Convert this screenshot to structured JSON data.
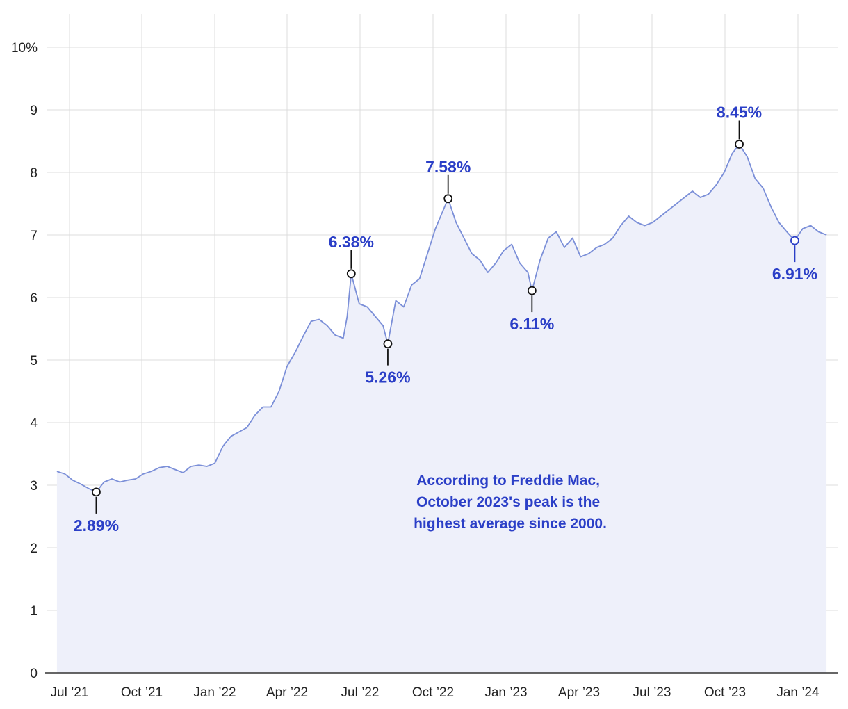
{
  "colors": {
    "line": "#7b8fd8",
    "area": "#eef0fa",
    "label": "#2b3fc7",
    "marker_last": "#2b3fc7"
  },
  "chart_data": {
    "type": "area",
    "title": "",
    "xlabel": "",
    "ylabel": "",
    "ylim": [
      0,
      10
    ],
    "xlim": [
      "2021-06-15",
      "2024-02-10"
    ],
    "y_ticks": [
      {
        "value": 0,
        "label": "0"
      },
      {
        "value": 1,
        "label": "1"
      },
      {
        "value": 2,
        "label": "2"
      },
      {
        "value": 3,
        "label": "3"
      },
      {
        "value": 4,
        "label": "4"
      },
      {
        "value": 5,
        "label": "5"
      },
      {
        "value": 6,
        "label": "6"
      },
      {
        "value": 7,
        "label": "7"
      },
      {
        "value": 8,
        "label": "8"
      },
      {
        "value": 9,
        "label": "9"
      },
      {
        "value": 10,
        "label": "10%"
      }
    ],
    "x_ticks": [
      {
        "date": "2021-07-01",
        "label": "Jul ’21"
      },
      {
        "date": "2021-10-01",
        "label": "Oct ’21"
      },
      {
        "date": "2022-01-01",
        "label": "Jan ’22"
      },
      {
        "date": "2022-04-01",
        "label": "Apr ’22"
      },
      {
        "date": "2022-07-01",
        "label": "Jul ’22"
      },
      {
        "date": "2022-10-01",
        "label": "Oct ’22"
      },
      {
        "date": "2023-01-01",
        "label": "Jan ’23"
      },
      {
        "date": "2023-04-01",
        "label": "Apr ’23"
      },
      {
        "date": "2023-07-01",
        "label": "Jul ’23"
      },
      {
        "date": "2023-10-01",
        "label": "Oct ’23"
      },
      {
        "date": "2024-01-01",
        "label": "Jan ’24"
      }
    ],
    "grid": true,
    "series": [
      {
        "x": [
          "2021-06-15",
          "2021-06-25",
          "2021-07-05",
          "2021-07-15",
          "2021-07-25",
          "2021-08-04",
          "2021-08-14",
          "2021-08-24",
          "2021-09-03",
          "2021-09-13",
          "2021-09-23",
          "2021-10-03",
          "2021-10-13",
          "2021-10-23",
          "2021-11-02",
          "2021-11-12",
          "2021-11-22",
          "2021-12-02",
          "2021-12-12",
          "2021-12-22",
          "2022-01-01",
          "2022-01-11",
          "2022-01-21",
          "2022-01-31",
          "2022-02-10",
          "2022-02-20",
          "2022-03-02",
          "2022-03-12",
          "2022-03-22",
          "2022-04-01",
          "2022-04-11",
          "2022-04-21",
          "2022-05-01",
          "2022-05-11",
          "2022-05-21",
          "2022-05-31",
          "2022-06-10",
          "2022-06-15",
          "2022-06-20",
          "2022-06-30",
          "2022-07-10",
          "2022-07-20",
          "2022-07-30",
          "2022-08-05",
          "2022-08-15",
          "2022-08-25",
          "2022-09-04",
          "2022-09-14",
          "2022-09-24",
          "2022-10-04",
          "2022-10-14",
          "2022-10-20",
          "2022-10-30",
          "2022-11-09",
          "2022-11-19",
          "2022-11-29",
          "2022-12-09",
          "2022-12-19",
          "2022-12-29",
          "2023-01-08",
          "2023-01-18",
          "2023-01-28",
          "2023-02-02",
          "2023-02-12",
          "2023-02-22",
          "2023-03-04",
          "2023-03-14",
          "2023-03-24",
          "2023-04-03",
          "2023-04-13",
          "2023-04-23",
          "2023-05-03",
          "2023-05-13",
          "2023-05-23",
          "2023-06-02",
          "2023-06-12",
          "2023-06-22",
          "2023-07-02",
          "2023-07-12",
          "2023-07-22",
          "2023-08-01",
          "2023-08-11",
          "2023-08-21",
          "2023-08-31",
          "2023-09-10",
          "2023-09-20",
          "2023-09-30",
          "2023-10-10",
          "2023-10-19",
          "2023-10-29",
          "2023-11-08",
          "2023-11-18",
          "2023-11-28",
          "2023-12-08",
          "2023-12-18",
          "2023-12-28",
          "2024-01-07",
          "2024-01-17",
          "2024-01-27",
          "2024-02-06"
        ],
        "y": [
          3.22,
          3.18,
          3.08,
          3.02,
          2.95,
          2.89,
          3.05,
          3.1,
          3.05,
          3.08,
          3.1,
          3.18,
          3.22,
          3.28,
          3.3,
          3.25,
          3.2,
          3.3,
          3.32,
          3.3,
          3.35,
          3.62,
          3.78,
          3.85,
          3.92,
          4.12,
          4.25,
          4.25,
          4.5,
          4.9,
          5.12,
          5.38,
          5.62,
          5.65,
          5.55,
          5.4,
          5.35,
          5.7,
          6.38,
          5.9,
          5.85,
          5.7,
          5.55,
          5.26,
          5.95,
          5.85,
          6.2,
          6.3,
          6.7,
          7.1,
          7.4,
          7.58,
          7.2,
          6.95,
          6.7,
          6.6,
          6.4,
          6.55,
          6.75,
          6.85,
          6.55,
          6.4,
          6.11,
          6.6,
          6.95,
          7.05,
          6.8,
          6.95,
          6.65,
          6.7,
          6.8,
          6.85,
          6.95,
          7.15,
          7.3,
          7.2,
          7.15,
          7.2,
          7.3,
          7.4,
          7.5,
          7.6,
          7.7,
          7.6,
          7.65,
          7.8,
          8.0,
          8.3,
          8.45,
          8.25,
          7.9,
          7.75,
          7.45,
          7.2,
          7.05,
          6.91,
          7.1,
          7.15,
          7.05,
          7.0
        ]
      }
    ],
    "callouts": [
      {
        "date": "2021-08-04",
        "value": 2.89,
        "label": "2.89%",
        "position": "below"
      },
      {
        "date": "2022-06-20",
        "value": 6.38,
        "label": "6.38%",
        "position": "above"
      },
      {
        "date": "2022-08-05",
        "value": 5.26,
        "label": "5.26%",
        "position": "below"
      },
      {
        "date": "2022-10-20",
        "value": 7.58,
        "label": "7.58%",
        "position": "above"
      },
      {
        "date": "2023-02-02",
        "value": 6.11,
        "label": "6.11%",
        "position": "below"
      },
      {
        "date": "2023-10-19",
        "value": 8.45,
        "label": "8.45%",
        "position": "above"
      },
      {
        "date": "2023-12-28",
        "value": 6.91,
        "label": "6.91%",
        "position": "below"
      }
    ],
    "annotation": {
      "lines": [
        "According to Freddie Mac,",
        "October 2023's peak is the",
        "highest average since 2000."
      ]
    }
  }
}
